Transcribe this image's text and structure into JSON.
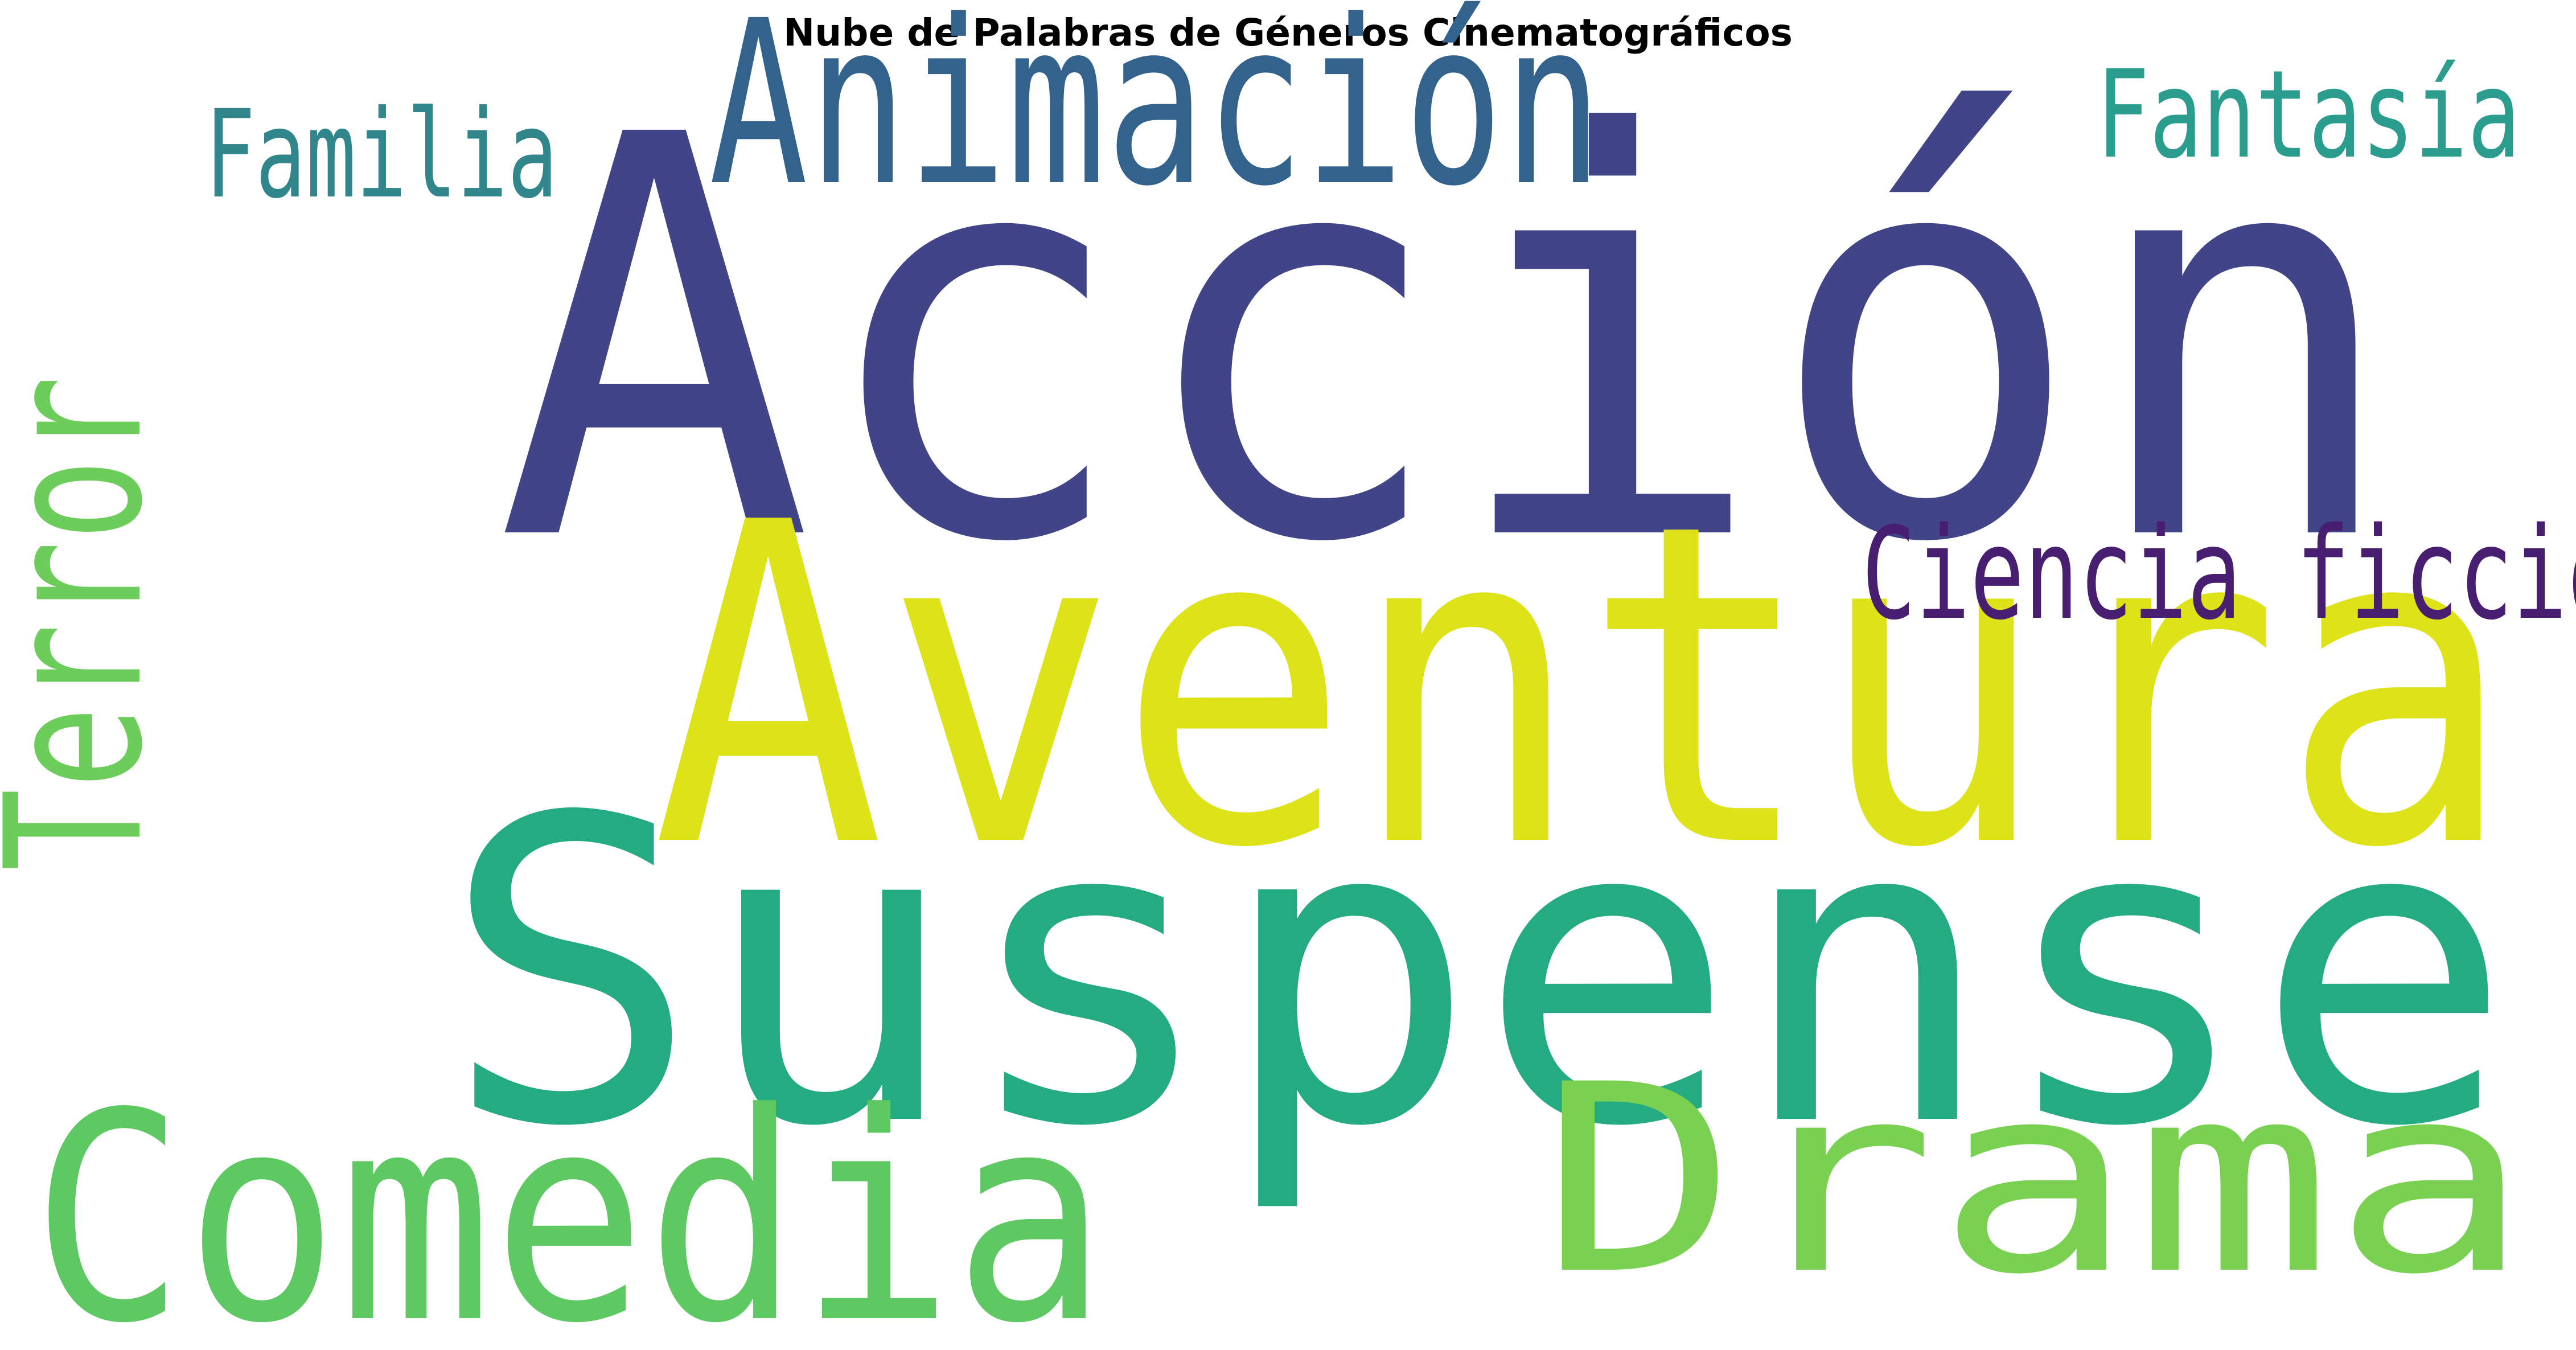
{
  "chart_data": {
    "type": "wordcloud",
    "title": "Nube de Palabras de Géneros Cinematográficos",
    "colormap": "viridis",
    "background": "#ffffff",
    "words": [
      {
        "text": "Acción",
        "weight": 1.0,
        "color": "#414487",
        "orientation": "horizontal"
      },
      {
        "text": "Aventura",
        "weight": 0.8,
        "color": "#dde318",
        "orientation": "horizontal"
      },
      {
        "text": "Suspense",
        "weight": 0.76,
        "color": "#25ab82",
        "orientation": "horizontal"
      },
      {
        "text": "Comedia",
        "weight": 0.52,
        "color": "#5ec962",
        "orientation": "horizontal"
      },
      {
        "text": "Drama",
        "weight": 0.47,
        "color": "#7ad151",
        "orientation": "horizontal"
      },
      {
        "text": "Animación",
        "weight": 0.41,
        "color": "#33638d",
        "orientation": "horizontal"
      },
      {
        "text": "Terror",
        "weight": 0.34,
        "color": "#6ccd5a",
        "orientation": "vertical"
      },
      {
        "text": "Ciencia ficción",
        "weight": 0.23,
        "color": "#481f70",
        "orientation": "horizontal"
      },
      {
        "text": "Fantasía",
        "weight": 0.22,
        "color": "#2a9d8f",
        "orientation": "horizontal"
      },
      {
        "text": "Familia",
        "weight": 0.22,
        "color": "#31868c",
        "orientation": "horizontal"
      }
    ]
  }
}
